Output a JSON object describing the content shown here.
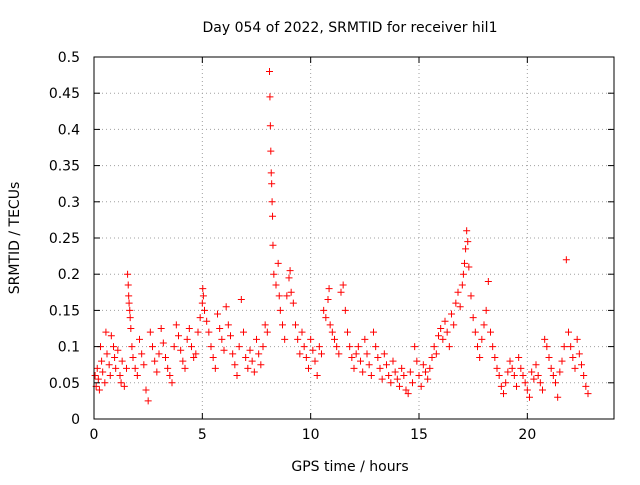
{
  "chart_data": {
    "type": "scatter",
    "title": "Day 054 of 2022, SRMTID for receiver hil1",
    "xlabel": "GPS time / hours",
    "ylabel": "SRMTID / TECUs",
    "xlim": [
      0,
      24
    ],
    "ylim": [
      0,
      0.5
    ],
    "x_ticks": [
      0,
      5,
      10,
      15,
      20
    ],
    "x_tick_labels": [
      "0",
      "5",
      "10",
      "15",
      "20"
    ],
    "y_ticks": [
      0,
      0.05,
      0.1,
      0.15,
      0.2,
      0.25,
      0.3,
      0.35,
      0.4,
      0.45,
      0.5
    ],
    "y_tick_labels": [
      "0",
      "0.05",
      "0.1",
      "0.15",
      "0.2",
      "0.25",
      "0.3",
      "0.35",
      "0.4",
      "0.45",
      "0.5"
    ],
    "grid": true,
    "legend": "none",
    "marker": "plus",
    "series_color": "#ff0000",
    "points": [
      [
        0.05,
        0.06
      ],
      [
        0.1,
        0.045
      ],
      [
        0.15,
        0.07
      ],
      [
        0.2,
        0.055
      ],
      [
        0.25,
        0.04
      ],
      [
        0.3,
        0.1
      ],
      [
        0.35,
        0.08
      ],
      [
        0.4,
        0.065
      ],
      [
        0.5,
        0.05
      ],
      [
        0.55,
        0.12
      ],
      [
        0.6,
        0.09
      ],
      [
        0.7,
        0.075
      ],
      [
        0.75,
        0.06
      ],
      [
        0.8,
        0.115
      ],
      [
        0.9,
        0.1
      ],
      [
        0.95,
        0.085
      ],
      [
        1.0,
        0.07
      ],
      [
        1.1,
        0.095
      ],
      [
        1.2,
        0.06
      ],
      [
        1.25,
        0.05
      ],
      [
        1.3,
        0.08
      ],
      [
        1.4,
        0.045
      ],
      [
        1.5,
        0.07
      ],
      [
        1.55,
        0.2
      ],
      [
        1.58,
        0.185
      ],
      [
        1.6,
        0.17
      ],
      [
        1.62,
        0.16
      ],
      [
        1.65,
        0.15
      ],
      [
        1.67,
        0.14
      ],
      [
        1.7,
        0.125
      ],
      [
        1.75,
        0.1
      ],
      [
        1.8,
        0.085
      ],
      [
        1.9,
        0.07
      ],
      [
        2.0,
        0.06
      ],
      [
        2.1,
        0.11
      ],
      [
        2.2,
        0.09
      ],
      [
        2.3,
        0.075
      ],
      [
        2.4,
        0.04
      ],
      [
        2.5,
        0.025
      ],
      [
        2.6,
        0.12
      ],
      [
        2.7,
        0.1
      ],
      [
        2.8,
        0.08
      ],
      [
        2.9,
        0.065
      ],
      [
        3.0,
        0.09
      ],
      [
        3.1,
        0.125
      ],
      [
        3.2,
        0.105
      ],
      [
        3.3,
        0.085
      ],
      [
        3.4,
        0.07
      ],
      [
        3.5,
        0.06
      ],
      [
        3.6,
        0.05
      ],
      [
        3.7,
        0.1
      ],
      [
        3.8,
        0.13
      ],
      [
        3.9,
        0.115
      ],
      [
        4.0,
        0.095
      ],
      [
        4.1,
        0.08
      ],
      [
        4.2,
        0.07
      ],
      [
        4.3,
        0.11
      ],
      [
        4.4,
        0.125
      ],
      [
        4.5,
        0.1
      ],
      [
        4.6,
        0.085
      ],
      [
        4.7,
        0.09
      ],
      [
        4.8,
        0.12
      ],
      [
        4.9,
        0.14
      ],
      [
        5.0,
        0.16
      ],
      [
        5.02,
        0.18
      ],
      [
        5.05,
        0.17
      ],
      [
        5.1,
        0.15
      ],
      [
        5.2,
        0.135
      ],
      [
        5.3,
        0.12
      ],
      [
        5.4,
        0.1
      ],
      [
        5.5,
        0.085
      ],
      [
        5.6,
        0.07
      ],
      [
        5.7,
        0.145
      ],
      [
        5.8,
        0.125
      ],
      [
        5.9,
        0.11
      ],
      [
        6.0,
        0.095
      ],
      [
        6.1,
        0.155
      ],
      [
        6.2,
        0.13
      ],
      [
        6.3,
        0.115
      ],
      [
        6.4,
        0.09
      ],
      [
        6.5,
        0.075
      ],
      [
        6.6,
        0.06
      ],
      [
        6.7,
        0.1
      ],
      [
        6.8,
        0.165
      ],
      [
        6.9,
        0.12
      ],
      [
        7.0,
        0.085
      ],
      [
        7.1,
        0.07
      ],
      [
        7.2,
        0.095
      ],
      [
        7.3,
        0.08
      ],
      [
        7.4,
        0.065
      ],
      [
        7.5,
        0.11
      ],
      [
        7.6,
        0.09
      ],
      [
        7.7,
        0.075
      ],
      [
        7.8,
        0.1
      ],
      [
        7.9,
        0.13
      ],
      [
        8.0,
        0.12
      ],
      [
        8.1,
        0.48
      ],
      [
        8.12,
        0.445
      ],
      [
        8.14,
        0.405
      ],
      [
        8.16,
        0.37
      ],
      [
        8.18,
        0.34
      ],
      [
        8.2,
        0.325
      ],
      [
        8.22,
        0.3
      ],
      [
        8.24,
        0.28
      ],
      [
        8.26,
        0.24
      ],
      [
        8.3,
        0.2
      ],
      [
        8.4,
        0.185
      ],
      [
        8.5,
        0.215
      ],
      [
        8.55,
        0.17
      ],
      [
        8.6,
        0.15
      ],
      [
        8.7,
        0.13
      ],
      [
        8.8,
        0.11
      ],
      [
        8.9,
        0.17
      ],
      [
        9.0,
        0.195
      ],
      [
        9.05,
        0.205
      ],
      [
        9.1,
        0.175
      ],
      [
        9.2,
        0.16
      ],
      [
        9.3,
        0.13
      ],
      [
        9.4,
        0.11
      ],
      [
        9.5,
        0.09
      ],
      [
        9.6,
        0.12
      ],
      [
        9.7,
        0.1
      ],
      [
        9.8,
        0.085
      ],
      [
        9.9,
        0.07
      ],
      [
        10.0,
        0.11
      ],
      [
        10.1,
        0.095
      ],
      [
        10.2,
        0.08
      ],
      [
        10.3,
        0.06
      ],
      [
        10.4,
        0.1
      ],
      [
        10.5,
        0.09
      ],
      [
        10.6,
        0.15
      ],
      [
        10.7,
        0.14
      ],
      [
        10.8,
        0.165
      ],
      [
        10.85,
        0.18
      ],
      [
        10.9,
        0.13
      ],
      [
        11.0,
        0.12
      ],
      [
        11.1,
        0.11
      ],
      [
        11.2,
        0.1
      ],
      [
        11.3,
        0.09
      ],
      [
        11.4,
        0.175
      ],
      [
        11.5,
        0.185
      ],
      [
        11.6,
        0.15
      ],
      [
        11.7,
        0.12
      ],
      [
        11.8,
        0.1
      ],
      [
        11.9,
        0.085
      ],
      [
        12.0,
        0.07
      ],
      [
        12.1,
        0.09
      ],
      [
        12.2,
        0.1
      ],
      [
        12.3,
        0.08
      ],
      [
        12.4,
        0.065
      ],
      [
        12.5,
        0.11
      ],
      [
        12.6,
        0.09
      ],
      [
        12.7,
        0.075
      ],
      [
        12.8,
        0.06
      ],
      [
        12.9,
        0.12
      ],
      [
        13.0,
        0.1
      ],
      [
        13.1,
        0.085
      ],
      [
        13.2,
        0.07
      ],
      [
        13.3,
        0.055
      ],
      [
        13.4,
        0.09
      ],
      [
        13.5,
        0.075
      ],
      [
        13.6,
        0.06
      ],
      [
        13.7,
        0.05
      ],
      [
        13.8,
        0.08
      ],
      [
        13.9,
        0.065
      ],
      [
        14.0,
        0.055
      ],
      [
        14.1,
        0.045
      ],
      [
        14.2,
        0.07
      ],
      [
        14.3,
        0.06
      ],
      [
        14.4,
        0.04
      ],
      [
        14.5,
        0.035
      ],
      [
        14.6,
        0.065
      ],
      [
        14.7,
        0.05
      ],
      [
        14.8,
        0.1
      ],
      [
        14.9,
        0.08
      ],
      [
        15.0,
        0.06
      ],
      [
        15.1,
        0.045
      ],
      [
        15.2,
        0.075
      ],
      [
        15.3,
        0.065
      ],
      [
        15.4,
        0.055
      ],
      [
        15.5,
        0.07
      ],
      [
        15.6,
        0.085
      ],
      [
        15.7,
        0.1
      ],
      [
        15.8,
        0.09
      ],
      [
        15.9,
        0.115
      ],
      [
        16.0,
        0.125
      ],
      [
        16.1,
        0.11
      ],
      [
        16.2,
        0.135
      ],
      [
        16.3,
        0.12
      ],
      [
        16.4,
        0.1
      ],
      [
        16.5,
        0.145
      ],
      [
        16.6,
        0.13
      ],
      [
        16.7,
        0.16
      ],
      [
        16.8,
        0.175
      ],
      [
        16.9,
        0.155
      ],
      [
        17.0,
        0.185
      ],
      [
        17.05,
        0.2
      ],
      [
        17.1,
        0.215
      ],
      [
        17.15,
        0.235
      ],
      [
        17.2,
        0.26
      ],
      [
        17.25,
        0.245
      ],
      [
        17.3,
        0.21
      ],
      [
        17.4,
        0.17
      ],
      [
        17.5,
        0.14
      ],
      [
        17.6,
        0.12
      ],
      [
        17.7,
        0.1
      ],
      [
        17.8,
        0.085
      ],
      [
        17.9,
        0.11
      ],
      [
        18.0,
        0.13
      ],
      [
        18.1,
        0.15
      ],
      [
        18.2,
        0.19
      ],
      [
        18.3,
        0.12
      ],
      [
        18.4,
        0.1
      ],
      [
        18.5,
        0.085
      ],
      [
        18.6,
        0.07
      ],
      [
        18.7,
        0.06
      ],
      [
        18.8,
        0.045
      ],
      [
        18.9,
        0.035
      ],
      [
        19.0,
        0.05
      ],
      [
        19.1,
        0.065
      ],
      [
        19.2,
        0.08
      ],
      [
        19.3,
        0.07
      ],
      [
        19.4,
        0.06
      ],
      [
        19.5,
        0.045
      ],
      [
        19.6,
        0.085
      ],
      [
        19.7,
        0.07
      ],
      [
        19.8,
        0.06
      ],
      [
        19.9,
        0.05
      ],
      [
        20.0,
        0.04
      ],
      [
        20.1,
        0.03
      ],
      [
        20.2,
        0.065
      ],
      [
        20.3,
        0.055
      ],
      [
        20.4,
        0.075
      ],
      [
        20.5,
        0.06
      ],
      [
        20.6,
        0.05
      ],
      [
        20.7,
        0.04
      ],
      [
        20.8,
        0.11
      ],
      [
        20.9,
        0.1
      ],
      [
        21.0,
        0.085
      ],
      [
        21.1,
        0.07
      ],
      [
        21.2,
        0.06
      ],
      [
        21.3,
        0.05
      ],
      [
        21.4,
        0.03
      ],
      [
        21.5,
        0.065
      ],
      [
        21.6,
        0.08
      ],
      [
        21.7,
        0.1
      ],
      [
        21.8,
        0.22
      ],
      [
        21.9,
        0.12
      ],
      [
        22.0,
        0.1
      ],
      [
        22.1,
        0.085
      ],
      [
        22.2,
        0.07
      ],
      [
        22.3,
        0.11
      ],
      [
        22.4,
        0.09
      ],
      [
        22.5,
        0.075
      ],
      [
        22.6,
        0.06
      ],
      [
        22.7,
        0.045
      ],
      [
        22.8,
        0.035
      ]
    ]
  }
}
